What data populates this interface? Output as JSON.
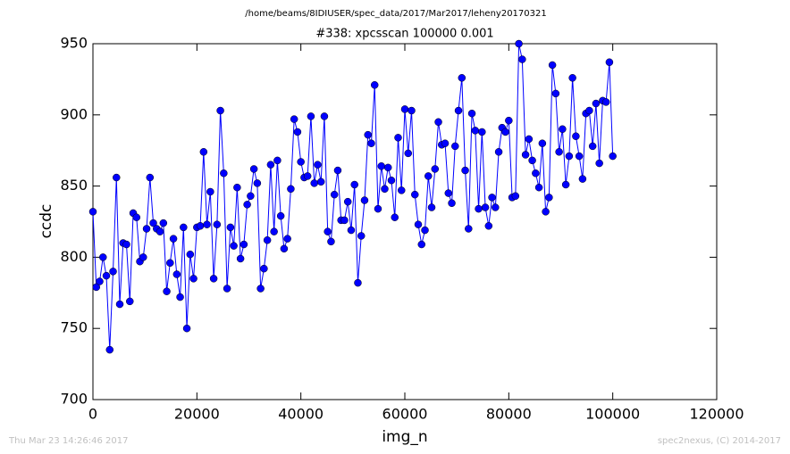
{
  "chart_data": {
    "type": "line",
    "title": "/home/beams/8IDIUSER/spec_data/2017/Mar2017/leheny20170321",
    "subtitle": "#338: xpcsscan 100000 0.001",
    "x_label": "img_n",
    "y_label": "ccdc",
    "xlim": [
      0,
      120000
    ],
    "ylim": [
      700,
      950
    ],
    "xticks": [
      0,
      20000,
      40000,
      60000,
      80000,
      100000,
      120000
    ],
    "yticks": [
      700,
      750,
      800,
      850,
      900,
      950
    ],
    "grid": false,
    "series": [
      {
        "name": "ccdc",
        "color": "#0000ff",
        "marker": "o",
        "x": [
          0,
          645,
          1290,
          1935,
          2581,
          3226,
          3871,
          4516,
          5161,
          5806,
          6452,
          7097,
          7742,
          8387,
          9032,
          9677,
          10323,
          10968,
          11613,
          12258,
          12903,
          13548,
          14194,
          14839,
          15484,
          16129,
          16774,
          17419,
          18065,
          18710,
          19355,
          20000,
          20645,
          21290,
          21935,
          22581,
          23226,
          23871,
          24516,
          25161,
          25806,
          26452,
          27097,
          27742,
          28387,
          29032,
          29677,
          30323,
          30968,
          31613,
          32258,
          32903,
          33548,
          34194,
          34839,
          35484,
          36129,
          36774,
          37419,
          38065,
          38710,
          39355,
          40000,
          40645,
          41290,
          41935,
          42581,
          43226,
          43871,
          44516,
          45161,
          45806,
          46452,
          47097,
          47742,
          48387,
          49032,
          49677,
          50323,
          50968,
          51613,
          52258,
          52903,
          53548,
          54194,
          54839,
          55484,
          56129,
          56774,
          57419,
          58065,
          58710,
          59355,
          60000,
          60645,
          61290,
          61935,
          62581,
          63226,
          63871,
          64516,
          65161,
          65806,
          66452,
          67097,
          67742,
          68387,
          69032,
          69677,
          70323,
          70968,
          71613,
          72258,
          72903,
          73548,
          74194,
          74839,
          75484,
          76129,
          76774,
          77419,
          78065,
          78710,
          79355,
          80000,
          80645,
          81290,
          81935,
          82581,
          83226,
          83871,
          84516,
          85161,
          85806,
          86452,
          87097,
          87742,
          88387,
          89032,
          89677,
          90323,
          90968,
          91613,
          92258,
          92903,
          93548,
          94194,
          94839,
          95484,
          96129,
          96774,
          97419,
          98065,
          98710,
          99355,
          100000
        ],
        "values": [
          832,
          779,
          783,
          800,
          787,
          735,
          790,
          856,
          767,
          810,
          809,
          769,
          831,
          828,
          797,
          800,
          820,
          856,
          824,
          820,
          818,
          824,
          776,
          796,
          813,
          788,
          772,
          821,
          750,
          802,
          785,
          821,
          822,
          874,
          823,
          846,
          785,
          823,
          903,
          859,
          778,
          821,
          808,
          849,
          799,
          809,
          837,
          843,
          862,
          852,
          778,
          792,
          812,
          865,
          818,
          868,
          829,
          806,
          813,
          848,
          897,
          888,
          867,
          856,
          857,
          899,
          852,
          865,
          853,
          899,
          818,
          811,
          844,
          861,
          826,
          826,
          839,
          819,
          851,
          782,
          815,
          840,
          886,
          880,
          921,
          834,
          864,
          848,
          863,
          854,
          828,
          884,
          847,
          904,
          873,
          903,
          844,
          823,
          809,
          819,
          857,
          835,
          862,
          895,
          879,
          880,
          845,
          838,
          878,
          903,
          926,
          861,
          820,
          901,
          889,
          834,
          888,
          835,
          822,
          842,
          835,
          874,
          891,
          888,
          896,
          842,
          843,
          950,
          939,
          872,
          883,
          868,
          859,
          849,
          880,
          832,
          842,
          935,
          915,
          874,
          890,
          851,
          871,
          926,
          885,
          871,
          855,
          901,
          903,
          878,
          908,
          866,
          910,
          909,
          937,
          871
        ]
      }
    ]
  },
  "footer": {
    "left": "Thu Mar 23 14:26:46 2017",
    "right": "spec2nexus, (C) 2014-2017"
  }
}
